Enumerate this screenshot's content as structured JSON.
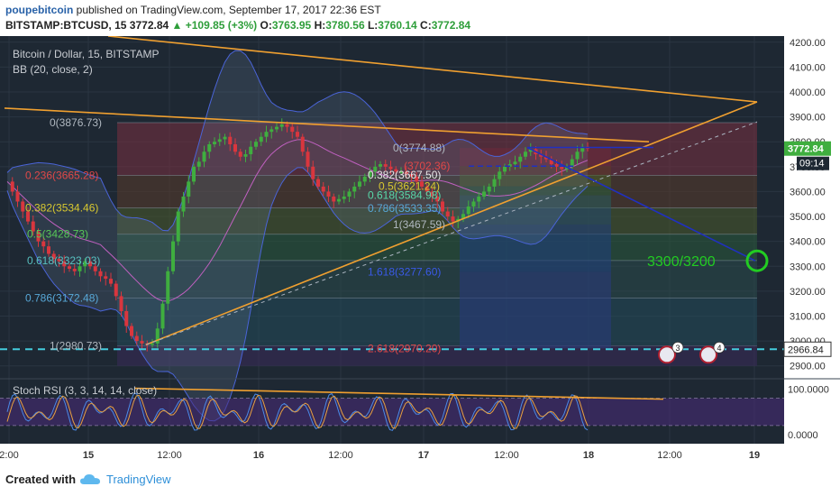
{
  "header": {
    "author": "poupebitcoin",
    "published_text": " published on TradingView.com, September 17, 2017 22:36 EST",
    "symbol": "BITSTAMP:BTCUSD, 15",
    "last": "3772.84",
    "change": "▲ +109.85 (+3%)",
    "o_label": "O:",
    "o_value": "3763.95",
    "h_label": "H:",
    "h_value": "3780.56",
    "l_label": "L:",
    "l_value": "3760.14",
    "c_label": "C:",
    "c_value": "3772.84"
  },
  "legend": {
    "series": "Bitcoin / Dollar, 15, BITSTAMP",
    "indicator": "BB (20, close, 2)",
    "stoch": "Stoch RSI (3, 3, 14, 14, close)"
  },
  "footer": {
    "created_with": "Created with",
    "brand": "TradingView"
  },
  "colors": {
    "background": "#1e2833",
    "candle_up": "#3fae3f",
    "candle_down": "#d9363e",
    "trendline": "#f0a030",
    "blue_line": "#2030c0",
    "target": "#22cc22",
    "cyan_dash": "#44ccdd",
    "price_badge": "#3fae3f"
  },
  "chart_data": [
    {
      "type": "candlestick",
      "title": "Bitcoin / Dollar, 15, BITSTAMP",
      "x_ticks": [
        "2:00",
        "15",
        "12:00",
        "16",
        "12:00",
        "17",
        "12:00",
        "18",
        "12:00",
        "19"
      ],
      "y_ticks": [
        2900,
        3000,
        3100,
        3200,
        3300,
        3400,
        3500,
        3600,
        3700,
        3800,
        3900,
        4000,
        4100,
        4200
      ],
      "y_tick_labels": [
        "2900.00",
        "3000.00",
        "3100.00",
        "3200.00",
        "3300.00",
        "3400.00",
        "3500.00",
        "3600.00",
        "3700.00",
        "3800.00",
        "3900.00",
        "4000.00",
        "4100.00",
        "4200.00"
      ],
      "ylim": [
        2870,
        4210
      ],
      "close_series": [
        3640,
        3600,
        3560,
        3520,
        3480,
        3440,
        3400,
        3380,
        3350,
        3330,
        3320,
        3300,
        3290,
        3280,
        3300,
        3320,
        3300,
        3280,
        3260,
        3250,
        3230,
        3180,
        3120,
        3060,
        3020,
        3000,
        2990,
        2985,
        2990,
        3050,
        3150,
        3280,
        3400,
        3520,
        3580,
        3640,
        3700,
        3720,
        3760,
        3790,
        3800,
        3810,
        3820,
        3790,
        3760,
        3740,
        3750,
        3780,
        3800,
        3820,
        3840,
        3850,
        3860,
        3870,
        3860,
        3840,
        3820,
        3760,
        3700,
        3650,
        3620,
        3600,
        3580,
        3560,
        3570,
        3580,
        3600,
        3620,
        3640,
        3660,
        3680,
        3700,
        3710,
        3700,
        3690,
        3680,
        3680,
        3670,
        3660,
        3640,
        3620,
        3600,
        3580,
        3560,
        3520,
        3500,
        3480,
        3490,
        3510,
        3540,
        3560,
        3580,
        3600,
        3620,
        3650,
        3680,
        3700,
        3710,
        3720,
        3740,
        3760,
        3770,
        3750,
        3740,
        3730,
        3710,
        3700,
        3690,
        3700,
        3730,
        3760,
        3780,
        3772.84
      ],
      "last_price": "3772.84",
      "last_price_time": "09:14",
      "cyan_level": "2966.84",
      "target_label": "3300/3200",
      "fib_left": [
        {
          "level": "0(3876.73)",
          "price": 3876.73
        },
        {
          "level": "0.236(3665.28)",
          "price": 3665.28
        },
        {
          "level": "0.382(3534.46)",
          "price": 3534.46
        },
        {
          "level": "0.5(3428.73)",
          "price": 3428.73
        },
        {
          "level": "0.618(3323.03)",
          "price": 3323.03
        },
        {
          "level": "0.786(3172.48)",
          "price": 3172.48
        },
        {
          "level": "1(2980.73)",
          "price": 2980.73
        }
      ],
      "fib_right": [
        {
          "level": "0(3774.88)",
          "price": 3774.88
        },
        {
          "level": "(3702.36)",
          "price": 3702.36
        },
        {
          "level": "0.382(3667.50)",
          "price": 3667.5
        },
        {
          "level": "0.5(3621.24)",
          "price": 3621.24
        },
        {
          "level": "0.618(3584.98)",
          "price": 3584.98
        },
        {
          "level": "0.786(3533.35)",
          "price": 3533.35
        },
        {
          "level": "1(3467.59)",
          "price": 3467.59
        },
        {
          "level": "1.618(3277.60)",
          "price": 3277.6
        },
        {
          "level": "2.618(2970.20)",
          "price": 2970.2
        }
      ],
      "event_badges": [
        "3",
        "4"
      ]
    },
    {
      "type": "line",
      "title": "Stoch RSI (3, 3, 14, 14, close)",
      "y_ticks": [
        0,
        100
      ],
      "y_tick_labels": [
        "0.0000",
        "100.0000"
      ],
      "ylim": [
        -20,
        115
      ],
      "band": [
        20,
        80
      ]
    }
  ]
}
